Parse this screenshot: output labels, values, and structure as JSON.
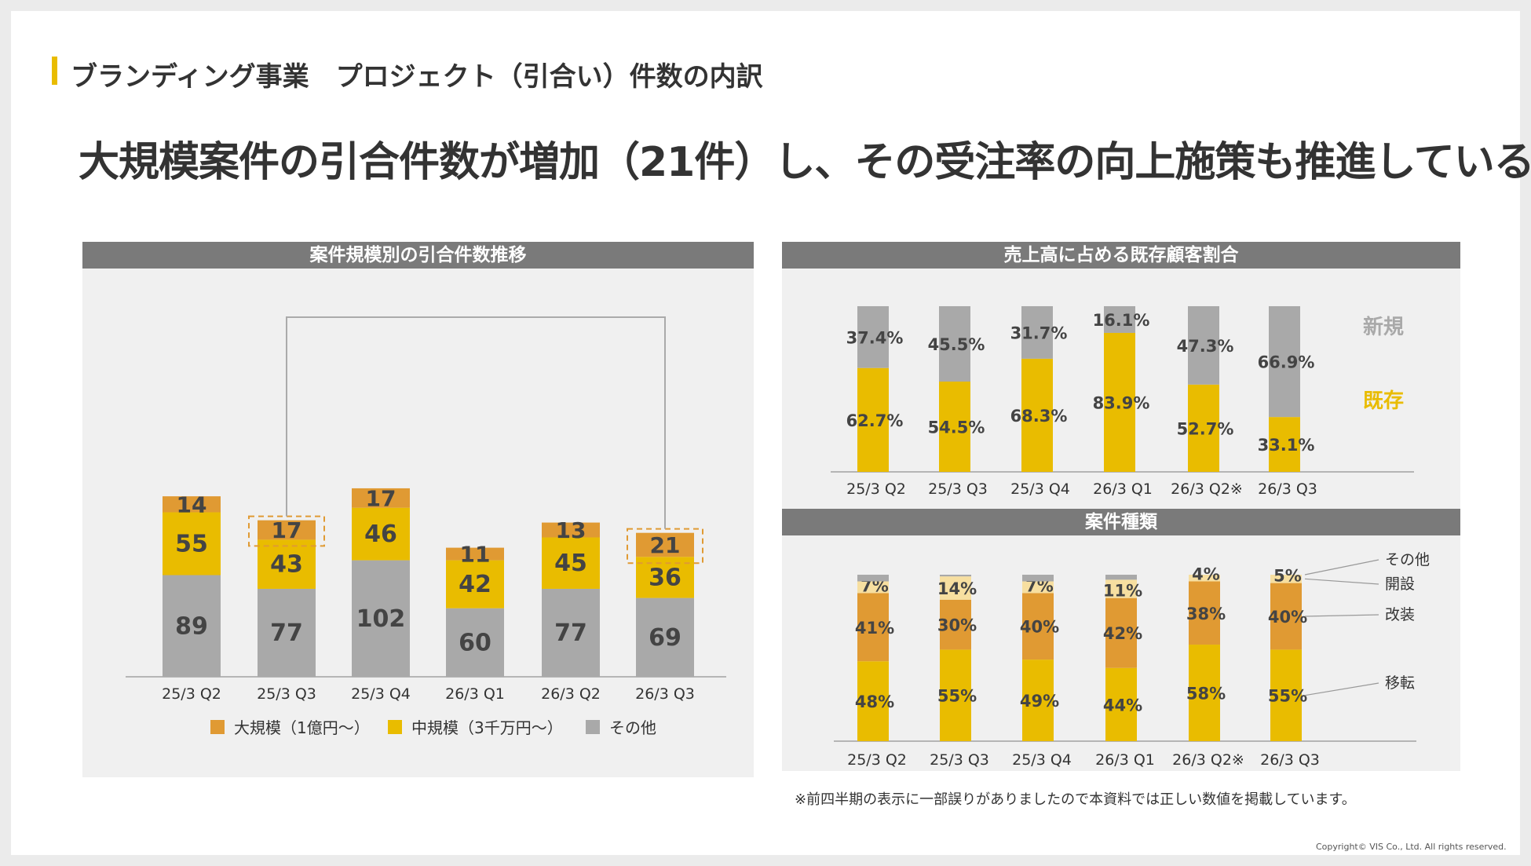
{
  "page": {
    "section_title": "ブランディング事業　プロジェクト（引合い）件数の内訳",
    "headline": "大規模案件の引合件数が増加（21件）し、その受注率の向上施策も推進している",
    "footnote": "※前四半期の表示に一部誤りがありましたので本資料では正しい数値を掲載しています。",
    "copyright": "Copyright© VIS Co., Ltd. All rights reserved."
  },
  "colors": {
    "large": "#e09a33",
    "medium": "#e9bc00",
    "other": "#a9a9a9",
    "small": "#f7dfa0",
    "panel_header": "#7a7a7a",
    "highlight": "#e09a33"
  },
  "chart_data": [
    {
      "id": "leads-by-size",
      "type": "bar",
      "stacked": true,
      "title": "案件規模別の引合件数推移",
      "categories": [
        "25/3 Q2",
        "25/3 Q3",
        "25/3 Q4",
        "26/3 Q1",
        "26/3 Q2",
        "26/3 Q3"
      ],
      "series": [
        {
          "name": "その他",
          "values": [
            89,
            77,
            102,
            60,
            77,
            69
          ]
        },
        {
          "name": "中規模（3千万円〜）",
          "values": [
            55,
            43,
            46,
            42,
            45,
            36
          ]
        },
        {
          "name": "大規模（1億円〜）",
          "values": [
            14,
            17,
            17,
            11,
            13,
            21
          ]
        }
      ],
      "legend": [
        "大規模（1億円〜）",
        "中規模（3千万円〜）",
        "その他"
      ],
      "legend_position": "bottom",
      "highlighted_categories": [
        "25/3 Q3",
        "26/3 Q3"
      ],
      "ylim": [
        0,
        165
      ]
    },
    {
      "id": "existing-customer-share",
      "type": "bar",
      "stacked": true,
      "percent": true,
      "title": "売上高に占める既存顧客割合",
      "categories": [
        "25/3 Q2",
        "25/3 Q3",
        "25/3 Q4",
        "26/3 Q1",
        "26/3 Q2※",
        "26/3 Q3"
      ],
      "series": [
        {
          "name": "既存",
          "values": [
            62.7,
            54.5,
            68.3,
            83.9,
            52.7,
            33.1
          ],
          "labels": [
            "62.7%",
            "54.5%",
            "68.3%",
            "83.9%",
            "52.7%",
            "33.1%"
          ]
        },
        {
          "name": "新規",
          "values": [
            37.4,
            45.5,
            31.7,
            16.1,
            47.3,
            66.9
          ],
          "labels": [
            "37.4%",
            "45.5%",
            "31.7%",
            "16.1%",
            "47.3%",
            "66.9%"
          ]
        }
      ],
      "legend": [
        "新規",
        "既存"
      ],
      "legend_position": "right"
    },
    {
      "id": "project-types",
      "type": "bar",
      "stacked": true,
      "percent": true,
      "title": "案件種類",
      "categories": [
        "25/3 Q2",
        "25/3 Q3",
        "25/3 Q4",
        "26/3 Q1",
        "26/3 Q2※",
        "26/3 Q3"
      ],
      "series": [
        {
          "name": "移転",
          "values": [
            48,
            55,
            49,
            44,
            58,
            55
          ],
          "labels": [
            "48%",
            "55%",
            "49%",
            "44%",
            "58%",
            "55%"
          ]
        },
        {
          "name": "改装",
          "values": [
            41,
            30,
            40,
            42,
            38,
            40
          ],
          "labels": [
            "41%",
            "30%",
            "40%",
            "42%",
            "38%",
            "40%"
          ]
        },
        {
          "name": "開設",
          "values": [
            7,
            14,
            7,
            11,
            4,
            5
          ],
          "labels": [
            "7%",
            "14%",
            "7%",
            "11%",
            "4%",
            "5%"
          ]
        },
        {
          "name": "その他",
          "values": [
            4,
            1,
            4,
            3,
            0,
            0
          ]
        }
      ],
      "legend": [
        "その他",
        "開設",
        "改装",
        "移転"
      ],
      "legend_position": "right"
    }
  ]
}
